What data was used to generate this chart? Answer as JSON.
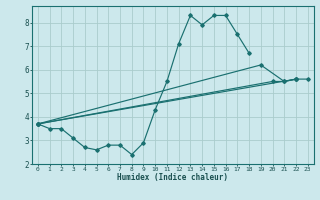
{
  "xlabel": "Humidex (Indice chaleur)",
  "xlim": [
    -0.5,
    23.5
  ],
  "ylim": [
    2,
    8.7
  ],
  "yticks": [
    2,
    3,
    4,
    5,
    6,
    7,
    8
  ],
  "xticks": [
    0,
    1,
    2,
    3,
    4,
    5,
    6,
    7,
    8,
    9,
    10,
    11,
    12,
    13,
    14,
    15,
    16,
    17,
    18,
    19,
    20,
    21,
    22,
    23
  ],
  "bg_color": "#cce8ec",
  "grid_color": "#aacccc",
  "line_color": "#1a7070",
  "line1_x": [
    0,
    1,
    2,
    3,
    4,
    5,
    6,
    7,
    8,
    9,
    10,
    11,
    12,
    13,
    14,
    15,
    16,
    17,
    18
  ],
  "line1_y": [
    3.7,
    3.5,
    3.5,
    3.1,
    2.7,
    2.6,
    2.8,
    2.8,
    2.4,
    2.9,
    4.3,
    5.5,
    7.1,
    8.3,
    7.9,
    8.3,
    8.3,
    7.5,
    6.7
  ],
  "line2_x": [
    0,
    20,
    21,
    22
  ],
  "line2_y": [
    3.7,
    5.5,
    5.5,
    5.6
  ],
  "line3_x": [
    0,
    19,
    21,
    22
  ],
  "line3_y": [
    3.7,
    6.2,
    5.5,
    5.6
  ],
  "line4_x": [
    0,
    22,
    23
  ],
  "line4_y": [
    3.7,
    5.6,
    5.6
  ]
}
